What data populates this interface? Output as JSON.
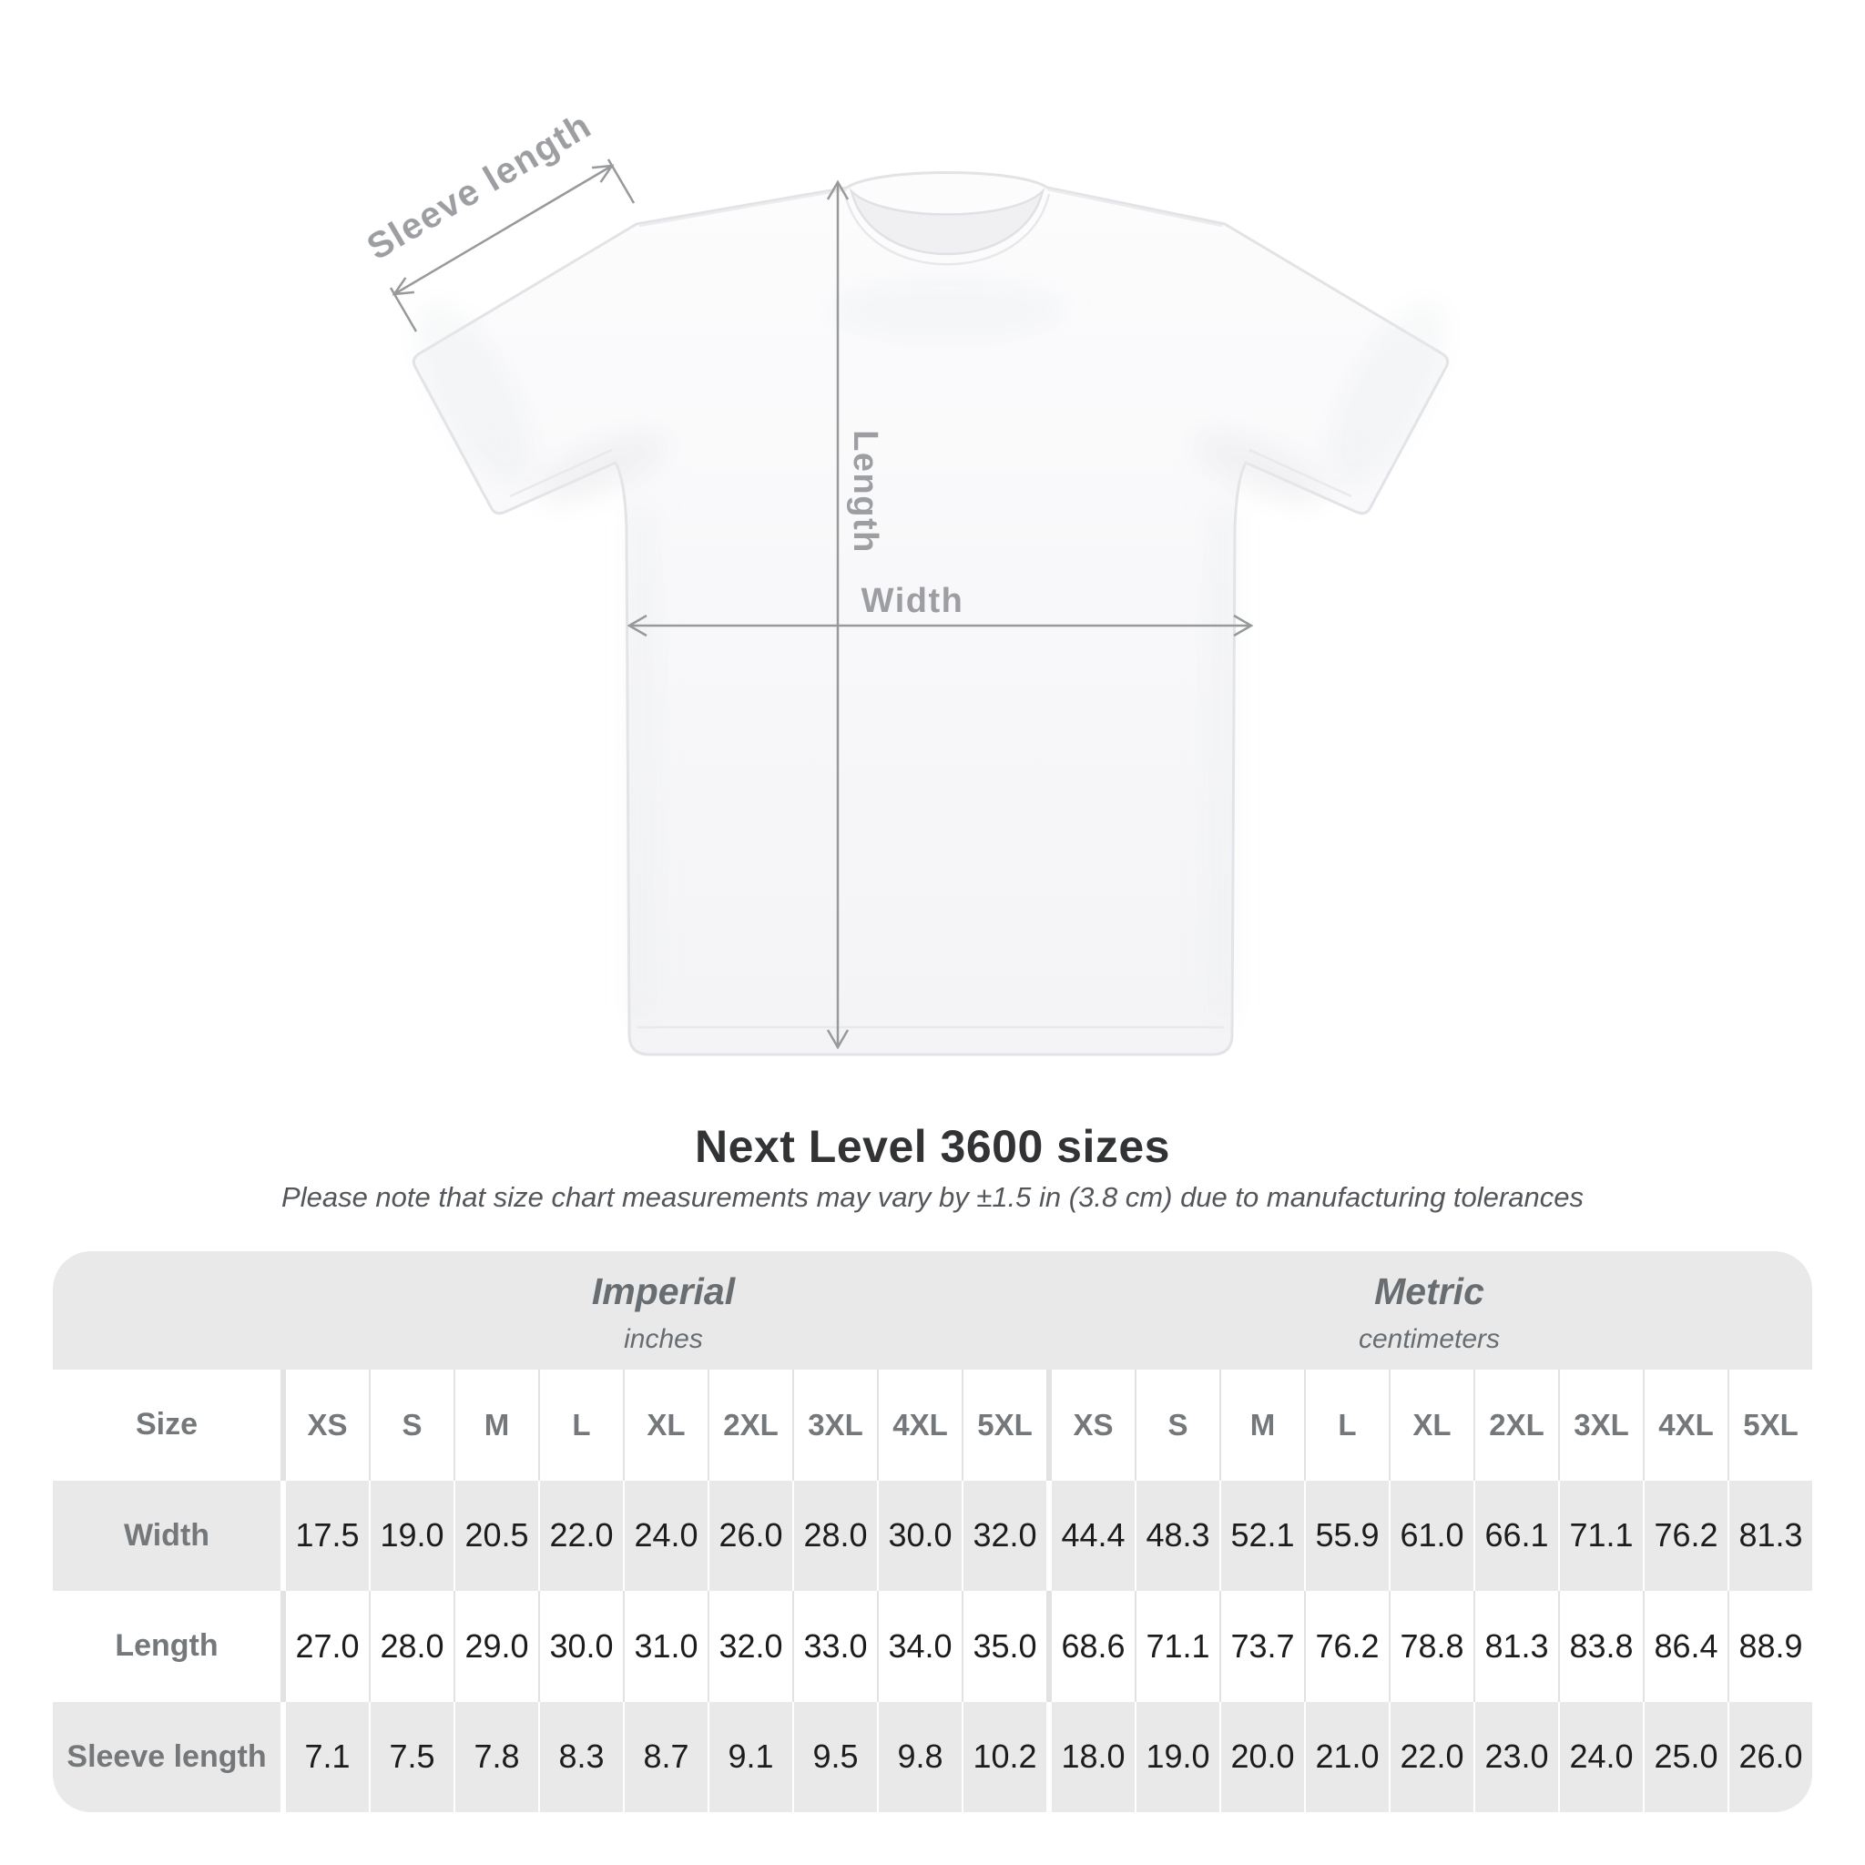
{
  "title": "Next Level 3600 sizes",
  "subtitle": "Please note that size chart measurements may vary by ±1.5 in (3.8 cm) due to manufacturing tolerances",
  "diagram": {
    "sleeve_label": "Sleeve length",
    "length_label": "Length",
    "width_label": "Width"
  },
  "table": {
    "size_header": "Size",
    "groups": [
      {
        "label": "Imperial",
        "sublabel": "inches"
      },
      {
        "label": "Metric",
        "sublabel": "centimeters"
      }
    ],
    "sizes": [
      "XS",
      "S",
      "M",
      "L",
      "XL",
      "2XL",
      "3XL",
      "4XL",
      "5XL"
    ],
    "rows": [
      {
        "label": "Width",
        "imperial": [
          "17.5",
          "19.0",
          "20.5",
          "22.0",
          "24.0",
          "26.0",
          "28.0",
          "30.0",
          "32.0"
        ],
        "metric": [
          "44.4",
          "48.3",
          "52.1",
          "55.9",
          "61.0",
          "66.1",
          "71.1",
          "76.2",
          "81.3"
        ]
      },
      {
        "label": "Length",
        "imperial": [
          "27.0",
          "28.0",
          "29.0",
          "30.0",
          "31.0",
          "32.0",
          "33.0",
          "34.0",
          "35.0"
        ],
        "metric": [
          "68.6",
          "71.1",
          "73.7",
          "76.2",
          "78.8",
          "81.3",
          "83.8",
          "86.4",
          "88.9"
        ]
      },
      {
        "label": "Sleeve length",
        "imperial": [
          "7.1",
          "7.5",
          "7.8",
          "8.3",
          "8.7",
          "9.1",
          "9.5",
          "9.8",
          "10.2"
        ],
        "metric": [
          "18.0",
          "19.0",
          "20.0",
          "21.0",
          "22.0",
          "23.0",
          "24.0",
          "25.0",
          "26.0"
        ]
      }
    ]
  },
  "colors": {
    "table_gray": "#e9e9e9",
    "separator_on_white": "#e2e2e2",
    "label_text": "#74787b",
    "value_text": "#1c1c1c",
    "group_text": "#686d71",
    "title_text": "#313335",
    "subtitle_text": "#53565a",
    "measure_line": "#97999b",
    "measure_text": "#9c9ea1"
  },
  "chart_data": {
    "type": "table",
    "title": "Next Level 3600 sizes",
    "note": "Measurements may vary by ±1.5 in (3.8 cm) due to manufacturing tolerances",
    "unit_groups": [
      {
        "name": "Imperial",
        "unit": "inches"
      },
      {
        "name": "Metric",
        "unit": "centimeters"
      }
    ],
    "categories": [
      "XS",
      "S",
      "M",
      "L",
      "XL",
      "2XL",
      "3XL",
      "4XL",
      "5XL"
    ],
    "series": [
      {
        "name": "Width (in)",
        "values": [
          17.5,
          19.0,
          20.5,
          22.0,
          24.0,
          26.0,
          28.0,
          30.0,
          32.0
        ]
      },
      {
        "name": "Length (in)",
        "values": [
          27.0,
          28.0,
          29.0,
          30.0,
          31.0,
          32.0,
          33.0,
          34.0,
          35.0
        ]
      },
      {
        "name": "Sleeve length (in)",
        "values": [
          7.1,
          7.5,
          7.8,
          8.3,
          8.7,
          9.1,
          9.5,
          9.8,
          10.2
        ]
      },
      {
        "name": "Width (cm)",
        "values": [
          44.4,
          48.3,
          52.1,
          55.9,
          61.0,
          66.1,
          71.1,
          76.2,
          81.3
        ]
      },
      {
        "name": "Length (cm)",
        "values": [
          68.6,
          71.1,
          73.7,
          76.2,
          78.8,
          81.3,
          83.8,
          86.4,
          88.9
        ]
      },
      {
        "name": "Sleeve length (cm)",
        "values": [
          18.0,
          19.0,
          20.0,
          21.0,
          22.0,
          23.0,
          24.0,
          25.0,
          26.0
        ]
      }
    ]
  }
}
